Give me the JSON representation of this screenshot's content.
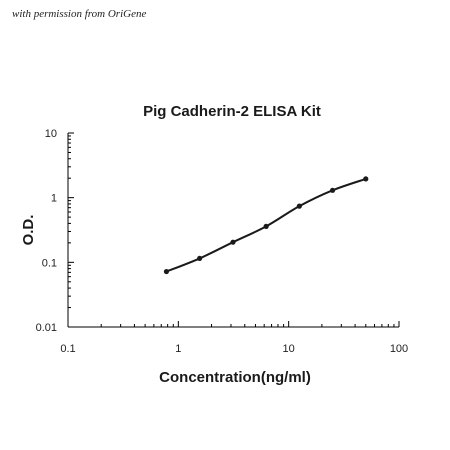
{
  "credit": "with permission from OriGene",
  "colors": {
    "line": "#1a1a1a",
    "axis": "#000000"
  },
  "chart_data": {
    "type": "line",
    "title": "Pig Cadherin-2 ELISA Kit",
    "xlabel": "Concentration(ng/ml)",
    "ylabel": "O.D.",
    "xscale": "log",
    "yscale": "log",
    "xlim": [
      0.1,
      100
    ],
    "ylim": [
      0.01,
      10
    ],
    "xticks": [
      0.1,
      1,
      10,
      100
    ],
    "xtick_labels": [
      "0.1",
      "1",
      "10",
      "100"
    ],
    "yticks": [
      0.01,
      0.1,
      1,
      10
    ],
    "ytick_labels": [
      "0.01",
      "0.1",
      "1",
      "10"
    ],
    "grid": false,
    "legend": false,
    "series": [
      {
        "x": [
          0.78,
          1.56,
          3.13,
          6.25,
          12.5,
          25,
          50
        ],
        "y": [
          0.072,
          0.115,
          0.205,
          0.36,
          0.74,
          1.3,
          1.95
        ]
      }
    ]
  }
}
